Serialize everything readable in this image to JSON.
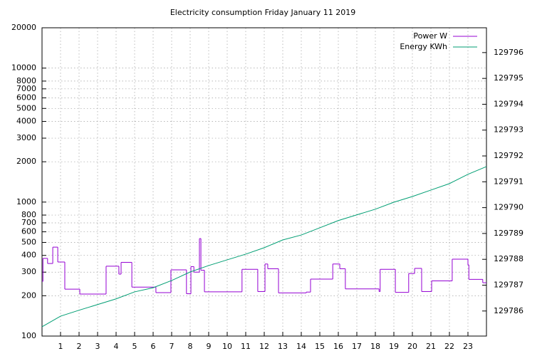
{
  "chart_data": {
    "type": "line",
    "title": "Electricity consumption Friday January 11 2019",
    "xlim": [
      0,
      24
    ],
    "xticks": [
      1,
      2,
      3,
      4,
      5,
      6,
      7,
      8,
      9,
      10,
      11,
      12,
      13,
      14,
      15,
      16,
      17,
      18,
      19,
      20,
      21,
      22,
      23
    ],
    "ylim": [
      100,
      20000
    ],
    "ylog": true,
    "yticks": [
      100,
      200,
      300,
      400,
      500,
      600,
      700,
      800,
      1000,
      2000,
      3000,
      4000,
      5000,
      6000,
      7000,
      8000,
      10000,
      20000
    ],
    "y2lim": [
      129785.03,
      129796.96
    ],
    "y2ticks": [
      129786,
      129787,
      129788,
      129789,
      129790,
      129791,
      129792,
      129793,
      129794,
      129795,
      129796
    ],
    "grid": true,
    "legend": "top-right",
    "series": [
      {
        "name": "Power W",
        "color": "#9400d3",
        "step": true,
        "x": [
          0,
          0.05,
          0.3,
          0.58,
          0.85,
          1.23,
          2.04,
          3.46,
          4.15,
          4.27,
          4.85,
          6.15,
          6.96,
          7.8,
          8.04,
          8.2,
          8.5,
          8.58,
          8.77,
          10.8,
          11.65,
          12.04,
          12.19,
          12.77,
          14.27,
          14.5,
          15.7,
          16.08,
          16.38,
          18.2,
          18.26,
          19.08,
          19.8,
          20.12,
          20.5,
          21.04,
          22.15,
          23,
          23.05,
          23.8
        ],
        "values": [
          256,
          380,
          348,
          461,
          357,
          224,
          206,
          332,
          290,
          355,
          232,
          211,
          312,
          207,
          330,
          300,
          534,
          310,
          214,
          315,
          215,
          345,
          318,
          210,
          213,
          266,
          345,
          318,
          225,
          215,
          315,
          212,
          293,
          320,
          215,
          258,
          375,
          340,
          265,
          250
        ]
      },
      {
        "name": "Energy KWh",
        "color": "#009e73",
        "axis": "y2",
        "x": [
          0,
          1,
          2,
          3,
          4,
          5,
          6,
          7,
          8,
          9,
          10,
          11,
          12,
          13,
          14,
          15,
          16,
          17,
          18,
          19,
          20,
          21,
          22,
          23,
          24
        ],
        "values": [
          129785.39,
          129785.8,
          129786.03,
          129786.25,
          129786.47,
          129786.74,
          129786.9,
          129787.18,
          129787.51,
          129787.76,
          129787.98,
          129788.2,
          129788.45,
          129788.75,
          129788.94,
          129789.22,
          129789.5,
          129789.72,
          129789.94,
          129790.21,
          129790.43,
          129790.68,
          129790.93,
          129791.29,
          129791.59
        ]
      }
    ]
  }
}
